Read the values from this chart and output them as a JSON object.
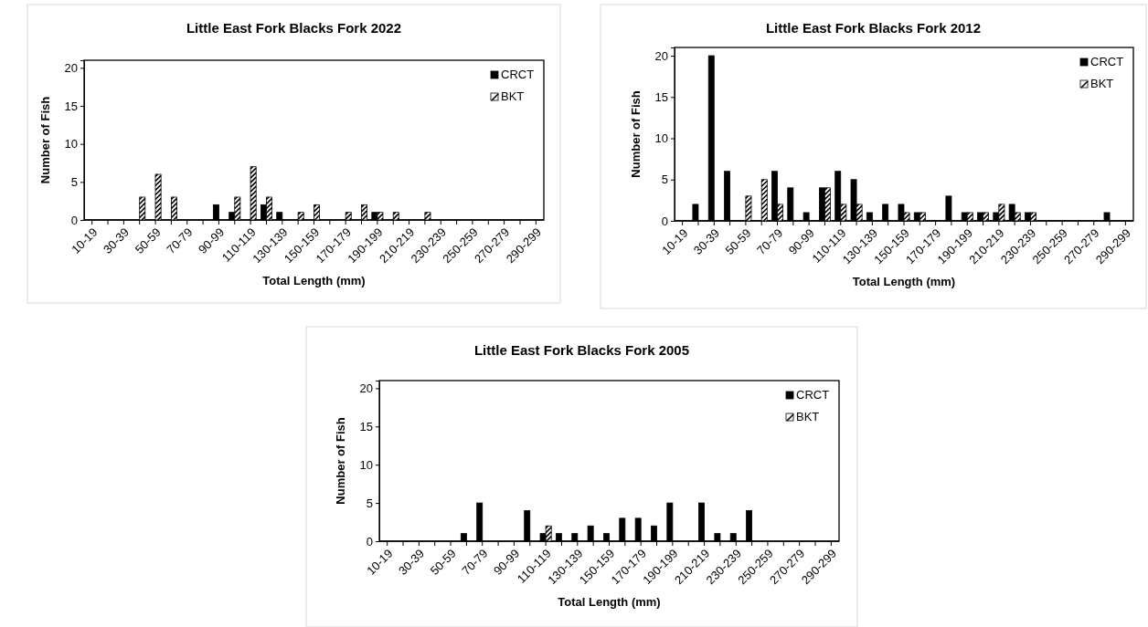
{
  "chart_data": [
    {
      "type": "bar",
      "title": "Little East Fork Blacks Fork 2022",
      "xlabel": "Total Length (mm)",
      "ylabel": "Number of Fish",
      "categories": [
        "10-19",
        null,
        "30-39",
        null,
        "50-59",
        null,
        "70-79",
        null,
        "90-99",
        null,
        "110-119",
        null,
        "130-139",
        null,
        "150-159",
        null,
        "170-179",
        null,
        "190-199",
        null,
        "210-219",
        null,
        "230-239",
        null,
        "250-259",
        null,
        "270-279",
        null,
        "290-299"
      ],
      "ylim": [
        0,
        21
      ],
      "yticks": [
        0,
        5,
        10,
        15,
        20
      ],
      "grid": false,
      "legend": "top right",
      "series": [
        {
          "name": "CRCT",
          "color": "#000000",
          "values": [
            0,
            0,
            0,
            0,
            0,
            0,
            0,
            0,
            2,
            1,
            0,
            2,
            1,
            0,
            0,
            0,
            0,
            0,
            1,
            0,
            0,
            0,
            0,
            0,
            0,
            0,
            0,
            0,
            0
          ]
        },
        {
          "name": "BKT",
          "color": "#ffffff",
          "values": [
            0,
            0,
            0,
            3,
            6,
            3,
            0,
            0,
            0,
            3,
            7,
            3,
            0,
            1,
            2,
            0,
            1,
            2,
            1,
            1,
            0,
            1,
            0,
            0,
            0,
            0,
            0,
            0,
            0
          ]
        }
      ]
    },
    {
      "type": "bar",
      "title": "Little East Fork Blacks Fork 2012",
      "xlabel": "Total Length (mm)",
      "ylabel": "Number of Fish",
      "categories": [
        "10-19",
        null,
        "30-39",
        null,
        "50-59",
        null,
        "70-79",
        null,
        "90-99",
        null,
        "110-119",
        null,
        "130-139",
        null,
        "150-159",
        null,
        "170-179",
        null,
        "190-199",
        null,
        "210-219",
        null,
        "230-239",
        null,
        "250-259",
        null,
        "270-279",
        null,
        "290-299"
      ],
      "ylim": [
        0,
        21
      ],
      "yticks": [
        0,
        5,
        10,
        15,
        20
      ],
      "grid": false,
      "legend": "top right",
      "series": [
        {
          "name": "CRCT",
          "color": "#000000",
          "values": [
            0,
            2,
            20,
            6,
            0,
            0,
            6,
            4,
            1,
            4,
            6,
            5,
            1,
            2,
            2,
            1,
            0,
            3,
            1,
            1,
            1,
            2,
            1,
            0,
            0,
            0,
            0,
            1,
            0
          ]
        },
        {
          "name": "BKT",
          "color": "#ffffff",
          "values": [
            0,
            0,
            0,
            0,
            3,
            5,
            2,
            0,
            0,
            4,
            2,
            2,
            0,
            0,
            1,
            1,
            0,
            0,
            1,
            1,
            2,
            1,
            1,
            0,
            0,
            0,
            0,
            0,
            0
          ]
        }
      ]
    },
    {
      "type": "bar",
      "title": "Little East Fork Blacks Fork 2005",
      "xlabel": "Total Length (mm)",
      "ylabel": "Number of Fish",
      "categories": [
        "10-19",
        null,
        "30-39",
        null,
        "50-59",
        null,
        "70-79",
        null,
        "90-99",
        null,
        "110-119",
        null,
        "130-139",
        null,
        "150-159",
        null,
        "170-179",
        null,
        "190-199",
        null,
        "210-219",
        null,
        "230-239",
        null,
        "250-259",
        null,
        "270-279",
        null,
        "290-299"
      ],
      "ylim": [
        0,
        21
      ],
      "yticks": [
        0,
        5,
        10,
        15,
        20
      ],
      "grid": false,
      "legend": "top right",
      "series": [
        {
          "name": "CRCT",
          "color": "#000000",
          "values": [
            0,
            0,
            0,
            0,
            0,
            1,
            5,
            0,
            0,
            4,
            1,
            1,
            1,
            2,
            1,
            3,
            3,
            2,
            5,
            0,
            5,
            1,
            1,
            4,
            0,
            0,
            0,
            0,
            0
          ]
        },
        {
          "name": "BKT",
          "color": "#ffffff",
          "values": [
            0,
            0,
            0,
            0,
            0,
            0,
            0,
            0,
            0,
            0,
            2,
            0,
            0,
            0,
            0,
            0,
            0,
            0,
            0,
            0,
            0,
            0,
            0,
            0,
            0,
            0,
            0,
            0,
            0
          ]
        }
      ]
    }
  ]
}
